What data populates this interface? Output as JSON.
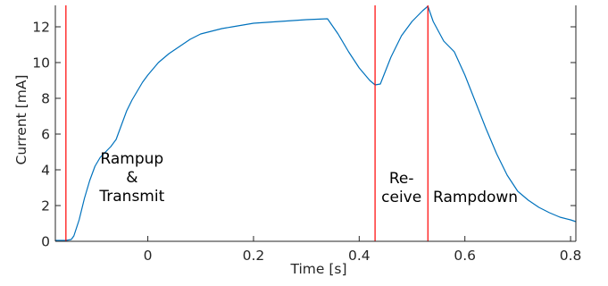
{
  "chart_data": {
    "type": "line",
    "title": "",
    "xlabel": "Time [s]",
    "ylabel": "Current [mA]",
    "xlim": [
      -0.175,
      0.81
    ],
    "ylim": [
      0,
      13.2
    ],
    "xticks": [
      0,
      0.2,
      0.4,
      0.6,
      0.8
    ],
    "xtick_labels": [
      "0",
      "0.2",
      "0.4",
      "0.6",
      "0.8"
    ],
    "yticks": [
      0,
      2,
      4,
      6,
      8,
      10,
      12
    ],
    "ytick_labels": [
      "0",
      "2",
      "4",
      "6",
      "8",
      "10",
      "12"
    ],
    "grid": false,
    "line_color": "#0072BD",
    "marker_color": "#ff0000",
    "series": [
      {
        "x": [
          -0.175,
          -0.155,
          -0.145,
          -0.14,
          -0.13,
          -0.12,
          -0.11,
          -0.1,
          -0.09,
          -0.08,
          -0.07,
          -0.06,
          -0.05,
          -0.04,
          -0.03,
          -0.02,
          -0.01,
          0.0,
          0.02,
          0.04,
          0.06,
          0.08,
          0.1,
          0.12,
          0.14,
          0.16,
          0.18,
          0.2,
          0.25,
          0.3,
          0.34,
          0.36,
          0.38,
          0.4,
          0.42,
          0.43,
          0.44,
          0.46,
          0.48,
          0.5,
          0.52,
          0.53,
          0.54,
          0.56,
          0.58,
          0.6,
          0.62,
          0.64,
          0.66,
          0.68,
          0.7,
          0.72,
          0.74,
          0.76,
          0.78,
          0.8,
          0.81
        ],
        "y": [
          0.05,
          0.05,
          0.1,
          0.3,
          1.2,
          2.4,
          3.4,
          4.2,
          4.7,
          5.0,
          5.3,
          5.7,
          6.5,
          7.3,
          7.9,
          8.4,
          8.9,
          9.3,
          10.0,
          10.5,
          10.9,
          11.3,
          11.6,
          11.75,
          11.9,
          12.0,
          12.1,
          12.2,
          12.3,
          12.4,
          12.45,
          11.6,
          10.6,
          9.7,
          9.0,
          8.75,
          8.8,
          10.3,
          11.5,
          12.3,
          12.9,
          13.15,
          12.3,
          11.2,
          10.6,
          9.3,
          7.8,
          6.3,
          4.9,
          3.7,
          2.8,
          2.3,
          1.9,
          1.6,
          1.35,
          1.2,
          1.1
        ]
      }
    ],
    "markers": [
      -0.155,
      0.43,
      0.53
    ],
    "annotations": [
      {
        "lines": [
          "Rampup",
          "&",
          "Transmit"
        ],
        "x": -0.03,
        "y": 4.35
      },
      {
        "lines": [
          "Re-",
          "ceive"
        ],
        "x": 0.48,
        "y": 3.25
      },
      {
        "lines": [
          "Rampdown"
        ],
        "x": 0.62,
        "y": 2.2
      }
    ]
  }
}
